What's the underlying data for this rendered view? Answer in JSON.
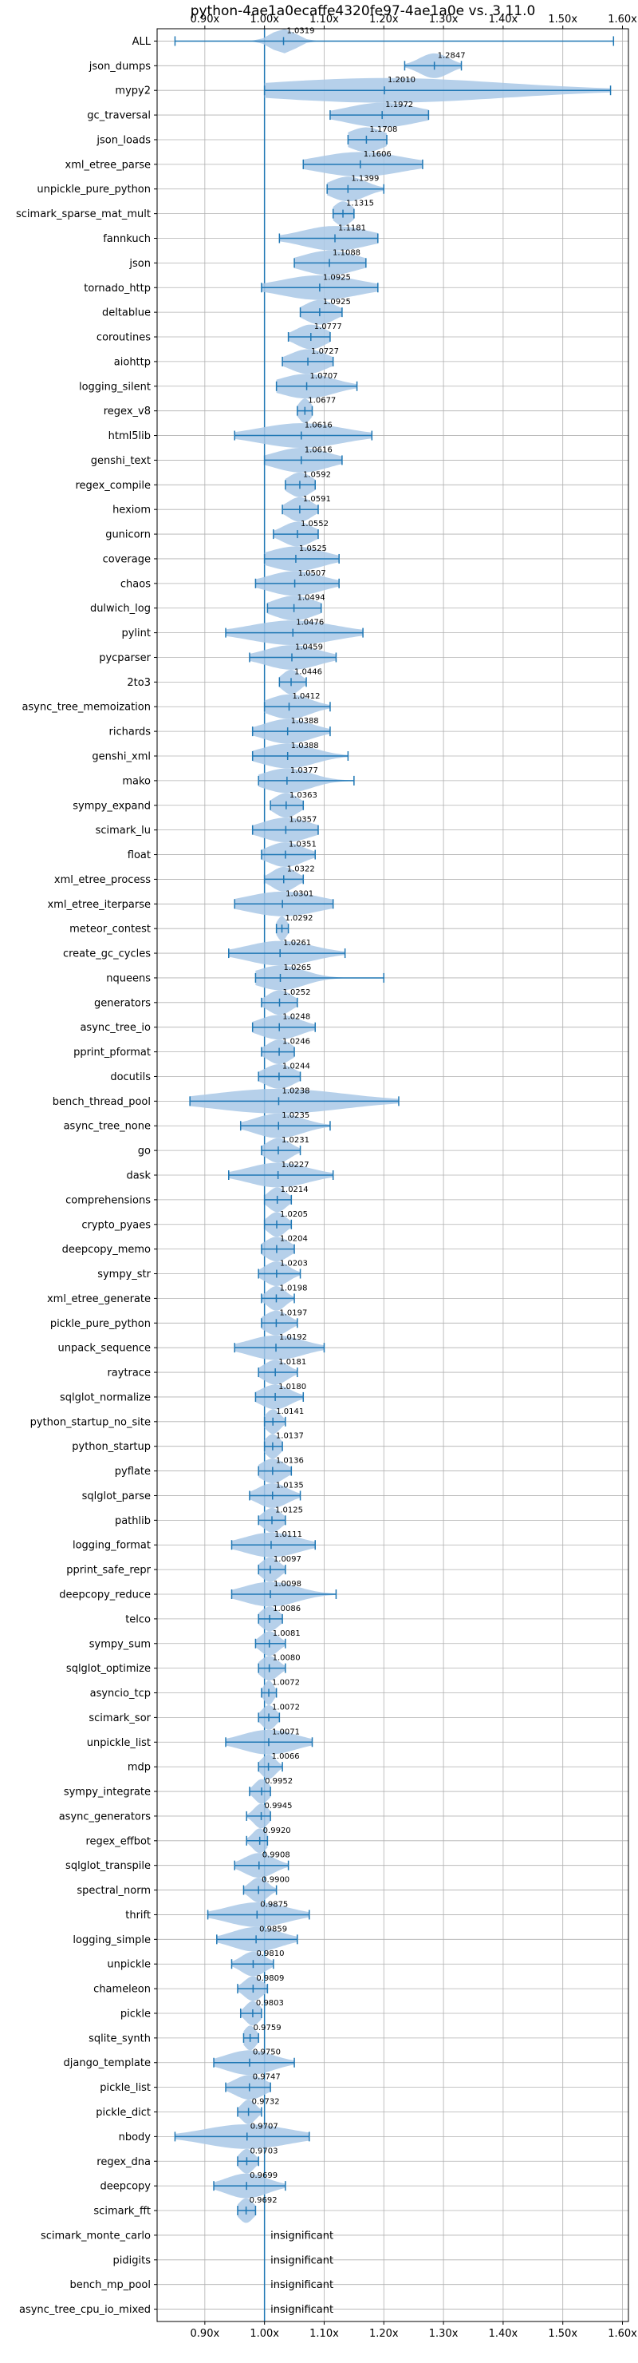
{
  "chart_data": {
    "type": "violin",
    "title": "python-4ae1a0ecaffe4320fe97-4ae1a0e vs. 3.11.0",
    "xlabel": "",
    "ylabel": "",
    "xlim": [
      0.82,
      1.61
    ],
    "x_ticks": [
      0.9,
      1.0,
      1.1,
      1.2,
      1.3,
      1.4,
      1.5,
      1.6
    ],
    "x_tick_labels": [
      "0.90x",
      "1.00x",
      "1.10x",
      "1.20x",
      "1.30x",
      "1.40x",
      "1.50x",
      "1.60x"
    ],
    "x_ticks_on_top_and_bottom": true,
    "grid": true,
    "reference_line": 1.0,
    "colors": {
      "violin": "#a9c8e6",
      "whisker": "#1f77b4",
      "grid": "#b0b0b0",
      "reference": "#1f77b4"
    },
    "insignificant_label": "insignificant",
    "benchmarks": [
      {
        "name": "ALL",
        "median": 1.0319,
        "min": 0.85,
        "max": 1.585,
        "spread": 0.02
      },
      {
        "name": "json_dumps",
        "median": 1.2847,
        "min": 1.235,
        "max": 1.33,
        "spread": 0.025
      },
      {
        "name": "mypy2",
        "median": 1.201,
        "min": 1.0,
        "max": 1.58,
        "spread": 0.2
      },
      {
        "name": "gc_traversal",
        "median": 1.1972,
        "min": 1.11,
        "max": 1.275,
        "spread": 0.06
      },
      {
        "name": "json_loads",
        "median": 1.1708,
        "min": 1.14,
        "max": 1.205,
        "spread": 0.03
      },
      {
        "name": "xml_etree_parse",
        "median": 1.1606,
        "min": 1.065,
        "max": 1.265,
        "spread": 0.07
      },
      {
        "name": "unpickle_pure_python",
        "median": 1.1399,
        "min": 1.105,
        "max": 1.2,
        "spread": 0.03
      },
      {
        "name": "scimark_sparse_mat_mult",
        "median": 1.1315,
        "min": 1.115,
        "max": 1.15,
        "spread": 0.015
      },
      {
        "name": "fannkuch",
        "median": 1.1181,
        "min": 1.025,
        "max": 1.19,
        "spread": 0.055
      },
      {
        "name": "json",
        "median": 1.1088,
        "min": 1.05,
        "max": 1.17,
        "spread": 0.045
      },
      {
        "name": "tornado_http",
        "median": 1.0925,
        "min": 0.995,
        "max": 1.19,
        "spread": 0.065
      },
      {
        "name": "deltablue",
        "median": 1.0925,
        "min": 1.06,
        "max": 1.13,
        "spread": 0.025
      },
      {
        "name": "coroutines",
        "median": 1.0777,
        "min": 1.04,
        "max": 1.11,
        "spread": 0.025
      },
      {
        "name": "aiohttp",
        "median": 1.0727,
        "min": 1.03,
        "max": 1.115,
        "spread": 0.03
      },
      {
        "name": "logging_silent",
        "median": 1.0707,
        "min": 1.02,
        "max": 1.155,
        "spread": 0.045
      },
      {
        "name": "regex_v8",
        "median": 1.0677,
        "min": 1.055,
        "max": 1.08,
        "spread": 0.01
      },
      {
        "name": "html5lib",
        "median": 1.0616,
        "min": 0.95,
        "max": 1.18,
        "spread": 0.07
      },
      {
        "name": "genshi_text",
        "median": 1.0616,
        "min": 1.0,
        "max": 1.13,
        "spread": 0.045
      },
      {
        "name": "regex_compile",
        "median": 1.0592,
        "min": 1.035,
        "max": 1.085,
        "spread": 0.02
      },
      {
        "name": "hexiom",
        "median": 1.0591,
        "min": 1.03,
        "max": 1.09,
        "spread": 0.02
      },
      {
        "name": "gunicorn",
        "median": 1.0552,
        "min": 1.015,
        "max": 1.09,
        "spread": 0.025
      },
      {
        "name": "coverage",
        "median": 1.0525,
        "min": 1.0,
        "max": 1.125,
        "spread": 0.045
      },
      {
        "name": "chaos",
        "median": 1.0507,
        "min": 0.985,
        "max": 1.125,
        "spread": 0.045
      },
      {
        "name": "dulwich_log",
        "median": 1.0494,
        "min": 1.005,
        "max": 1.095,
        "spread": 0.035
      },
      {
        "name": "pylint",
        "median": 1.0476,
        "min": 0.935,
        "max": 1.165,
        "spread": 0.07
      },
      {
        "name": "pycparser",
        "median": 1.0459,
        "min": 0.975,
        "max": 1.12,
        "spread": 0.045
      },
      {
        "name": "2to3",
        "median": 1.0446,
        "min": 1.025,
        "max": 1.07,
        "spread": 0.015
      },
      {
        "name": "async_tree_memoization",
        "median": 1.0412,
        "min": 1.0,
        "max": 1.11,
        "spread": 0.035
      },
      {
        "name": "richards",
        "median": 1.0388,
        "min": 0.98,
        "max": 1.11,
        "spread": 0.04
      },
      {
        "name": "genshi_xml",
        "median": 1.0388,
        "min": 0.98,
        "max": 1.14,
        "spread": 0.045
      },
      {
        "name": "mako",
        "median": 1.0377,
        "min": 0.99,
        "max": 1.15,
        "spread": 0.04
      },
      {
        "name": "sympy_expand",
        "median": 1.0363,
        "min": 1.01,
        "max": 1.065,
        "spread": 0.02
      },
      {
        "name": "scimark_lu",
        "median": 1.0357,
        "min": 0.98,
        "max": 1.09,
        "spread": 0.04
      },
      {
        "name": "float",
        "median": 1.0351,
        "min": 0.995,
        "max": 1.085,
        "spread": 0.03
      },
      {
        "name": "xml_etree_process",
        "median": 1.0322,
        "min": 1.0,
        "max": 1.065,
        "spread": 0.02
      },
      {
        "name": "xml_etree_iterparse",
        "median": 1.0301,
        "min": 0.95,
        "max": 1.115,
        "spread": 0.06
      },
      {
        "name": "meteor_contest",
        "median": 1.0292,
        "min": 1.02,
        "max": 1.04,
        "spread": 0.008
      },
      {
        "name": "create_gc_cycles",
        "median": 1.0261,
        "min": 0.94,
        "max": 1.135,
        "spread": 0.055
      },
      {
        "name": "nqueens",
        "median": 1.0265,
        "min": 0.985,
        "max": 1.2,
        "spread": 0.04
      },
      {
        "name": "generators",
        "median": 1.0252,
        "min": 0.995,
        "max": 1.055,
        "spread": 0.02
      },
      {
        "name": "async_tree_io",
        "median": 1.0248,
        "min": 0.98,
        "max": 1.085,
        "spread": 0.035
      },
      {
        "name": "pprint_pformat",
        "median": 1.0246,
        "min": 0.995,
        "max": 1.05,
        "spread": 0.02
      },
      {
        "name": "docutils",
        "median": 1.0244,
        "min": 0.99,
        "max": 1.06,
        "spread": 0.025
      },
      {
        "name": "bench_thread_pool",
        "median": 1.0238,
        "min": 0.875,
        "max": 1.225,
        "spread": 0.11
      },
      {
        "name": "async_tree_none",
        "median": 1.0235,
        "min": 0.96,
        "max": 1.11,
        "spread": 0.04
      },
      {
        "name": "go",
        "median": 1.0231,
        "min": 0.995,
        "max": 1.06,
        "spread": 0.02
      },
      {
        "name": "dask",
        "median": 1.0227,
        "min": 0.94,
        "max": 1.115,
        "spread": 0.05
      },
      {
        "name": "comprehensions",
        "median": 1.0214,
        "min": 1.0,
        "max": 1.045,
        "spread": 0.015
      },
      {
        "name": "crypto_pyaes",
        "median": 1.0205,
        "min": 1.0,
        "max": 1.045,
        "spread": 0.015
      },
      {
        "name": "deepcopy_memo",
        "median": 1.0204,
        "min": 0.995,
        "max": 1.05,
        "spread": 0.02
      },
      {
        "name": "sympy_str",
        "median": 1.0203,
        "min": 0.99,
        "max": 1.06,
        "spread": 0.02
      },
      {
        "name": "xml_etree_generate",
        "median": 1.0198,
        "min": 0.995,
        "max": 1.05,
        "spread": 0.015
      },
      {
        "name": "pickle_pure_python",
        "median": 1.0197,
        "min": 0.995,
        "max": 1.055,
        "spread": 0.02
      },
      {
        "name": "unpack_sequence",
        "median": 1.0192,
        "min": 0.95,
        "max": 1.1,
        "spread": 0.045
      },
      {
        "name": "raytrace",
        "median": 1.0181,
        "min": 0.99,
        "max": 1.055,
        "spread": 0.02
      },
      {
        "name": "sqlglot_normalize",
        "median": 1.018,
        "min": 0.985,
        "max": 1.065,
        "spread": 0.025
      },
      {
        "name": "python_startup_no_site",
        "median": 1.0141,
        "min": 1.0,
        "max": 1.035,
        "spread": 0.012
      },
      {
        "name": "python_startup",
        "median": 1.0137,
        "min": 1.0,
        "max": 1.03,
        "spread": 0.012
      },
      {
        "name": "pyflate",
        "median": 1.0136,
        "min": 0.99,
        "max": 1.045,
        "spread": 0.02
      },
      {
        "name": "sqlglot_parse",
        "median": 1.0135,
        "min": 0.975,
        "max": 1.06,
        "spread": 0.025
      },
      {
        "name": "pathlib",
        "median": 1.0125,
        "min": 0.99,
        "max": 1.035,
        "spread": 0.015
      },
      {
        "name": "logging_format",
        "median": 1.0111,
        "min": 0.945,
        "max": 1.085,
        "spread": 0.045
      },
      {
        "name": "pprint_safe_repr",
        "median": 1.0097,
        "min": 0.99,
        "max": 1.035,
        "spread": 0.015
      },
      {
        "name": "deepcopy_reduce",
        "median": 1.0098,
        "min": 0.945,
        "max": 1.12,
        "spread": 0.045
      },
      {
        "name": "telco",
        "median": 1.0086,
        "min": 0.99,
        "max": 1.03,
        "spread": 0.015
      },
      {
        "name": "sympy_sum",
        "median": 1.0081,
        "min": 0.985,
        "max": 1.035,
        "spread": 0.015
      },
      {
        "name": "sqlglot_optimize",
        "median": 1.008,
        "min": 0.99,
        "max": 1.035,
        "spread": 0.015
      },
      {
        "name": "asyncio_tcp",
        "median": 1.0072,
        "min": 0.995,
        "max": 1.02,
        "spread": 0.008
      },
      {
        "name": "scimark_sor",
        "median": 1.0072,
        "min": 0.99,
        "max": 1.025,
        "spread": 0.012
      },
      {
        "name": "unpickle_list",
        "median": 1.0071,
        "min": 0.935,
        "max": 1.08,
        "spread": 0.045
      },
      {
        "name": "mdp",
        "median": 1.0066,
        "min": 0.99,
        "max": 1.03,
        "spread": 0.012
      },
      {
        "name": "sympy_integrate",
        "median": 0.9952,
        "min": 0.975,
        "max": 1.01,
        "spread": 0.012
      },
      {
        "name": "async_generators",
        "median": 0.9945,
        "min": 0.97,
        "max": 1.01,
        "spread": 0.012
      },
      {
        "name": "regex_effbot",
        "median": 0.992,
        "min": 0.97,
        "max": 1.005,
        "spread": 0.012
      },
      {
        "name": "sqlglot_transpile",
        "median": 0.9908,
        "min": 0.95,
        "max": 1.04,
        "spread": 0.025
      },
      {
        "name": "spectral_norm",
        "median": 0.99,
        "min": 0.965,
        "max": 1.02,
        "spread": 0.015
      },
      {
        "name": "thrift",
        "median": 0.9875,
        "min": 0.905,
        "max": 1.075,
        "spread": 0.05
      },
      {
        "name": "logging_simple",
        "median": 0.9859,
        "min": 0.92,
        "max": 1.055,
        "spread": 0.04
      },
      {
        "name": "unpickle",
        "median": 0.981,
        "min": 0.945,
        "max": 1.015,
        "spread": 0.02
      },
      {
        "name": "chameleon",
        "median": 0.9809,
        "min": 0.955,
        "max": 1.005,
        "spread": 0.015
      },
      {
        "name": "pickle",
        "median": 0.9803,
        "min": 0.96,
        "max": 0.995,
        "spread": 0.012
      },
      {
        "name": "sqlite_synth",
        "median": 0.9759,
        "min": 0.965,
        "max": 0.99,
        "spread": 0.01
      },
      {
        "name": "django_template",
        "median": 0.975,
        "min": 0.915,
        "max": 1.05,
        "spread": 0.04
      },
      {
        "name": "pickle_list",
        "median": 0.9747,
        "min": 0.935,
        "max": 1.01,
        "spread": 0.025
      },
      {
        "name": "pickle_dict",
        "median": 0.9732,
        "min": 0.955,
        "max": 0.995,
        "spread": 0.012
      },
      {
        "name": "nbody",
        "median": 0.9707,
        "min": 0.85,
        "max": 1.075,
        "spread": 0.07
      },
      {
        "name": "regex_dna",
        "median": 0.9703,
        "min": 0.955,
        "max": 0.99,
        "spread": 0.012
      },
      {
        "name": "deepcopy",
        "median": 0.9699,
        "min": 0.915,
        "max": 1.035,
        "spread": 0.035
      },
      {
        "name": "scimark_fft",
        "median": 0.9692,
        "min": 0.955,
        "max": 0.985,
        "spread": 0.012
      },
      {
        "name": "scimark_monte_carlo",
        "insignificant": true
      },
      {
        "name": "pidigits",
        "insignificant": true
      },
      {
        "name": "bench_mp_pool",
        "insignificant": true
      },
      {
        "name": "async_tree_cpu_io_mixed",
        "insignificant": true
      }
    ]
  }
}
